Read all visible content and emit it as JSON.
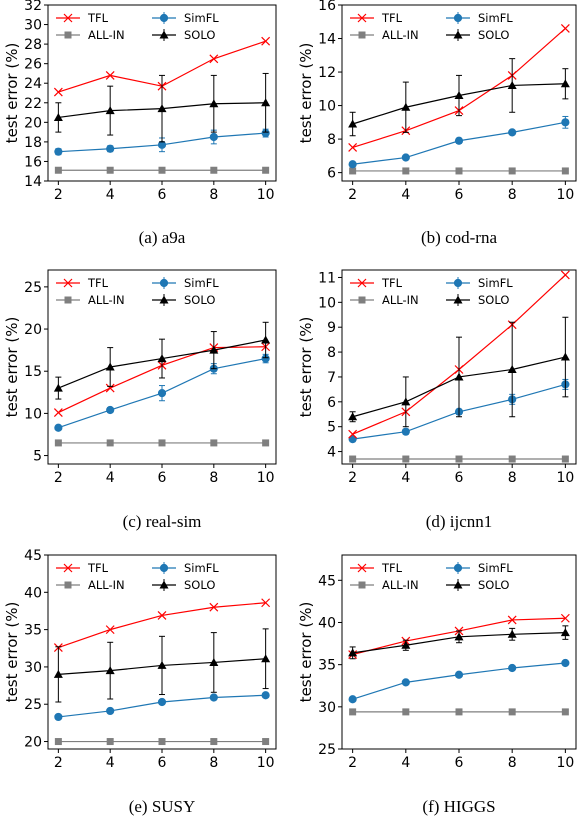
{
  "legend_labels": {
    "tfl": "TFL",
    "simfl": "SimFL",
    "allin": "ALL-IN",
    "solo": "SOLO"
  },
  "colors": {
    "tfl": "#ff0000",
    "simfl": "#1f77b4",
    "allin": "#7f7f7f",
    "solo": "#000000"
  },
  "chart_data": [
    {
      "type": "line",
      "caption": "(a) a9a",
      "ylabel": "test error (%)",
      "x": [
        2,
        4,
        6,
        8,
        10
      ],
      "xticks": [
        2,
        4,
        6,
        8,
        10
      ],
      "ylim": [
        14,
        32
      ],
      "yticks": [
        14,
        16,
        18,
        20,
        22,
        24,
        26,
        28,
        30,
        32
      ],
      "legend_position": "top",
      "series": [
        {
          "key": "tfl",
          "name": "TFL",
          "values": [
            23.1,
            24.8,
            23.7,
            26.5,
            28.3
          ]
        },
        {
          "key": "simfl",
          "name": "SimFL",
          "values": [
            17.0,
            17.3,
            17.7,
            18.5,
            18.9
          ],
          "errors": [
            0.3,
            0.3,
            0.7,
            0.7,
            0.4
          ]
        },
        {
          "key": "allin",
          "name": "ALL-IN",
          "values": [
            15.1,
            15.1,
            15.1,
            15.1,
            15.1
          ]
        },
        {
          "key": "solo",
          "name": "SOLO",
          "values": [
            20.5,
            21.2,
            21.4,
            21.9,
            22.0
          ],
          "errors": [
            1.5,
            2.5,
            3.4,
            2.9,
            3.0
          ]
        }
      ]
    },
    {
      "type": "line",
      "caption": "(b) cod-rna",
      "ylabel": "test error (%)",
      "x": [
        2,
        4,
        6,
        8,
        10
      ],
      "xticks": [
        2,
        4,
        6,
        8,
        10
      ],
      "ylim": [
        5.5,
        16
      ],
      "yticks": [
        6,
        8,
        10,
        12,
        14,
        16
      ],
      "legend_position": "top",
      "series": [
        {
          "key": "tfl",
          "name": "TFL",
          "values": [
            7.5,
            8.5,
            9.7,
            11.8,
            14.6
          ]
        },
        {
          "key": "simfl",
          "name": "SimFL",
          "values": [
            6.5,
            6.9,
            7.9,
            8.4,
            9.0
          ],
          "errors": [
            0.1,
            0.1,
            0.15,
            0.1,
            0.35
          ]
        },
        {
          "key": "allin",
          "name": "ALL-IN",
          "values": [
            6.1,
            6.1,
            6.1,
            6.1,
            6.1
          ]
        },
        {
          "key": "solo",
          "name": "SOLO",
          "values": [
            8.9,
            9.9,
            10.6,
            11.2,
            11.3
          ],
          "errors": [
            0.7,
            1.5,
            1.2,
            1.6,
            0.9
          ]
        }
      ]
    },
    {
      "type": "line",
      "caption": "(c) real-sim",
      "ylabel": "test error (%)",
      "x": [
        2,
        4,
        6,
        8,
        10
      ],
      "xticks": [
        2,
        4,
        6,
        8,
        10
      ],
      "ylim": [
        4,
        27
      ],
      "yticks": [
        5,
        10,
        15,
        20,
        25
      ],
      "legend_position": "top",
      "series": [
        {
          "key": "tfl",
          "name": "TFL",
          "values": [
            10.1,
            13.0,
            15.7,
            17.8,
            17.9
          ]
        },
        {
          "key": "simfl",
          "name": "SimFL",
          "values": [
            8.3,
            10.4,
            12.4,
            15.3,
            16.5
          ],
          "errors": [
            0.2,
            0.3,
            0.9,
            0.6,
            0.5
          ]
        },
        {
          "key": "allin",
          "name": "ALL-IN",
          "values": [
            6.5,
            6.5,
            6.5,
            6.5,
            6.5
          ]
        },
        {
          "key": "solo",
          "name": "SOLO",
          "values": [
            13.0,
            15.5,
            16.5,
            17.5,
            18.7
          ],
          "errors": [
            1.3,
            2.3,
            2.3,
            2.2,
            2.1
          ]
        }
      ]
    },
    {
      "type": "line",
      "caption": "(d) ijcnn1",
      "ylabel": "test error (%)",
      "x": [
        2,
        4,
        6,
        8,
        10
      ],
      "xticks": [
        2,
        4,
        6,
        8,
        10
      ],
      "ylim": [
        3.5,
        11.3
      ],
      "yticks": [
        4,
        5,
        6,
        7,
        8,
        9,
        10,
        11
      ],
      "legend_position": "top",
      "series": [
        {
          "key": "tfl",
          "name": "TFL",
          "values": [
            4.7,
            5.6,
            7.3,
            9.1,
            11.1
          ]
        },
        {
          "key": "simfl",
          "name": "SimFL",
          "values": [
            4.5,
            4.8,
            5.6,
            6.1,
            6.7
          ],
          "errors": [
            0.1,
            0.1,
            0.1,
            0.2,
            0.2
          ]
        },
        {
          "key": "allin",
          "name": "ALL-IN",
          "values": [
            3.7,
            3.7,
            3.7,
            3.7,
            3.7
          ]
        },
        {
          "key": "solo",
          "name": "SOLO",
          "values": [
            5.4,
            6.0,
            7.0,
            7.3,
            7.8
          ],
          "errors": [
            0.2,
            1.0,
            1.6,
            1.9,
            1.6
          ]
        }
      ]
    },
    {
      "type": "line",
      "caption": "(e) SUSY",
      "ylabel": "test error (%)",
      "x": [
        2,
        4,
        6,
        8,
        10
      ],
      "xticks": [
        2,
        4,
        6,
        8,
        10
      ],
      "ylim": [
        19,
        45
      ],
      "yticks": [
        20,
        25,
        30,
        35,
        40,
        45
      ],
      "legend_position": "top",
      "series": [
        {
          "key": "tfl",
          "name": "TFL",
          "values": [
            32.6,
            35.0,
            36.9,
            38.0,
            38.6
          ]
        },
        {
          "key": "simfl",
          "name": "SimFL",
          "values": [
            23.3,
            24.1,
            25.3,
            25.9,
            26.2
          ],
          "errors": [
            0.2,
            0.2,
            0.3,
            0.3,
            0.3
          ]
        },
        {
          "key": "allin",
          "name": "ALL-IN",
          "values": [
            20.0,
            20.0,
            20.0,
            20.0,
            20.0
          ]
        },
        {
          "key": "solo",
          "name": "SOLO",
          "values": [
            29.0,
            29.5,
            30.2,
            30.6,
            31.1
          ],
          "errors": [
            3.7,
            3.8,
            3.9,
            4.0,
            4.0
          ]
        }
      ]
    },
    {
      "type": "line",
      "caption": "(f) HIGGS",
      "ylabel": "test error (%)",
      "x": [
        2,
        4,
        6,
        8,
        10
      ],
      "xticks": [
        2,
        4,
        6,
        8,
        10
      ],
      "ylim": [
        25,
        48
      ],
      "yticks": [
        25,
        30,
        35,
        40,
        45
      ],
      "legend_position": "top",
      "series": [
        {
          "key": "tfl",
          "name": "TFL",
          "values": [
            36.2,
            37.8,
            39.0,
            40.3,
            40.5
          ]
        },
        {
          "key": "simfl",
          "name": "SimFL",
          "values": [
            30.9,
            32.9,
            33.8,
            34.6,
            35.2
          ],
          "errors": [
            0.1,
            0.1,
            0.1,
            0.1,
            0.1
          ]
        },
        {
          "key": "allin",
          "name": "ALL-IN",
          "values": [
            29.4,
            29.4,
            29.4,
            29.4,
            29.4
          ]
        },
        {
          "key": "solo",
          "name": "SOLO",
          "values": [
            36.4,
            37.3,
            38.3,
            38.6,
            38.8
          ],
          "errors": [
            0.7,
            0.6,
            0.7,
            0.7,
            0.8
          ]
        }
      ]
    }
  ]
}
